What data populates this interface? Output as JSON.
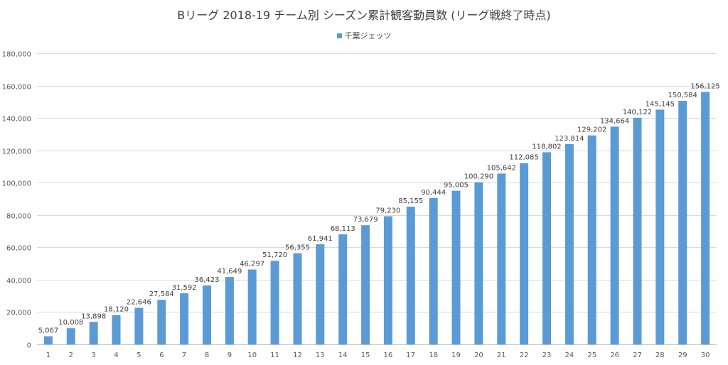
{
  "chart_data": {
    "type": "bar",
    "title": "Bリーグ 2018-19 チーム別 シーズン累計観客動員数 (リーグ戦終了時点)",
    "legend_position": "top",
    "grid": true,
    "ylim": [
      0,
      180000
    ],
    "y_ticks": [
      "0",
      "20,000",
      "40,000",
      "60,000",
      "80,000",
      "100,000",
      "120,000",
      "140,000",
      "160,000",
      "180,000"
    ],
    "categories": [
      "1",
      "2",
      "3",
      "4",
      "5",
      "6",
      "7",
      "8",
      "9",
      "10",
      "11",
      "12",
      "13",
      "14",
      "15",
      "16",
      "17",
      "18",
      "19",
      "20",
      "21",
      "22",
      "23",
      "24",
      "25",
      "26",
      "27",
      "28",
      "29",
      "30"
    ],
    "series": [
      {
        "name": "千葉ジェッツ",
        "color": "#5b9bd5",
        "values": [
          5067,
          10008,
          13898,
          18120,
          22646,
          27584,
          31592,
          36423,
          41649,
          46297,
          51720,
          56355,
          61941,
          68113,
          73679,
          79230,
          85155,
          90444,
          95005,
          100290,
          105642,
          112085,
          118802,
          123814,
          129202,
          134664,
          140122,
          145145,
          150584,
          156125
        ],
        "labels": [
          "5,067",
          "10,008",
          "13,898",
          "18,120",
          "22,646",
          "27,584",
          "31,592",
          "36,423",
          "41,649",
          "46,297",
          "51,720",
          "56,355",
          "61,941",
          "68,113",
          "73,679",
          "79,230",
          "85,155",
          "90,444",
          "95,005",
          "100,290",
          "105,642",
          "112,085",
          "118,802",
          "123,814",
          "129,202",
          "134,664",
          "140,122",
          "145,145",
          "150,584",
          "156,125"
        ]
      }
    ]
  }
}
